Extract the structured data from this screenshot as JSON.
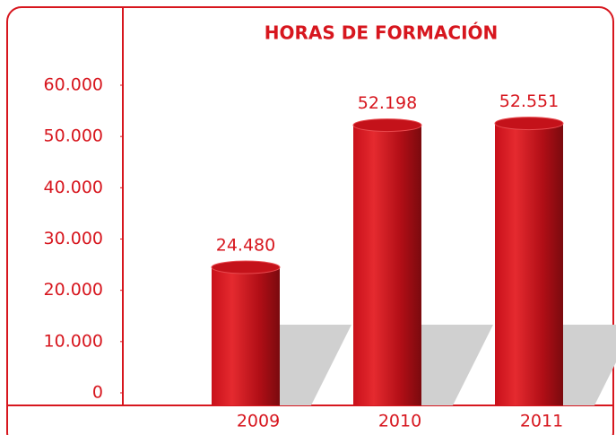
{
  "chart_data": {
    "type": "bar",
    "title": "HORAS DE FORMACIÓN",
    "categories": [
      "2009",
      "2010",
      "2011"
    ],
    "values": [
      24480,
      52198,
      52551
    ],
    "value_labels": [
      "24.480",
      "52.198",
      "52.551"
    ],
    "color": "#d7161e",
    "ylim": [
      0,
      60000
    ],
    "yticks": [
      0,
      {
        "value": 10000,
        "label": "10.000"
      },
      {
        "value": 20000,
        "label": "20.000"
      },
      {
        "value": 30000,
        "label": "30.000"
      },
      {
        "value": 40000,
        "label": "40.000"
      },
      {
        "value": 50000,
        "label": "50.000"
      },
      {
        "value": 60000,
        "label": "60.000"
      }
    ],
    "grid": false
  }
}
